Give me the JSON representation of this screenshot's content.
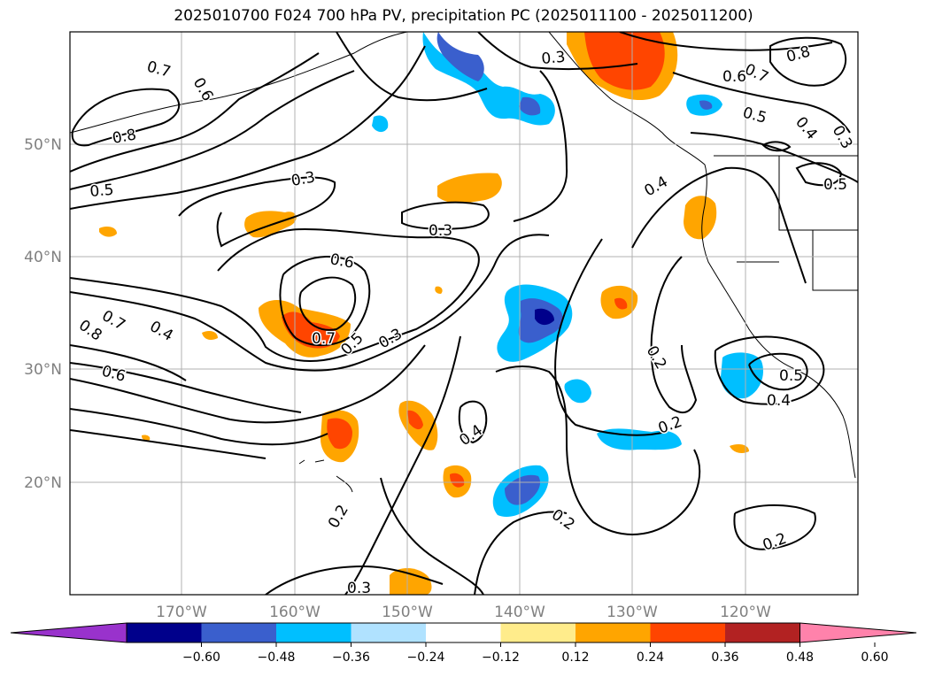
{
  "title": "2025010700 F024 700 hPa PV, precipitation PC (2025011100 - 2025011200)",
  "lat_labels": [
    "50°N",
    "40°N",
    "30°N",
    "20°N"
  ],
  "lon_labels": [
    "170°W",
    "160°W",
    "150°W",
    "140°W",
    "130°W",
    "120°W"
  ],
  "colorbar": {
    "ticks": [
      "−0.60",
      "−0.48",
      "−0.36",
      "−0.24",
      "−0.12",
      "0.12",
      "0.24",
      "0.36",
      "0.48",
      "0.60"
    ],
    "colors": [
      "#9932cc",
      "#00008b",
      "#3a5fcd",
      "#00bfff",
      "#b0e2ff",
      "#ffffff",
      "#ffec8b",
      "#ffa500",
      "#ff4500",
      "#b22222",
      "#ff82ab"
    ]
  },
  "contour_labels": [
    {
      "text": "0.7",
      "name": "contour-label"
    },
    {
      "text": "0.6",
      "name": "contour-label"
    },
    {
      "text": "0.8",
      "name": "contour-label"
    },
    {
      "text": "0.5",
      "name": "contour-label"
    },
    {
      "text": "0.3",
      "name": "contour-label"
    },
    {
      "text": "0.3",
      "name": "contour-label"
    },
    {
      "text": "0.6",
      "name": "contour-label"
    },
    {
      "text": "0.7",
      "name": "contour-label"
    },
    {
      "text": "0.8",
      "name": "contour-label"
    },
    {
      "text": "0.4",
      "name": "contour-label"
    },
    {
      "text": "0.6",
      "name": "contour-label"
    },
    {
      "text": "0.7",
      "name": "contour-label"
    },
    {
      "text": "0.5",
      "name": "contour-label"
    },
    {
      "text": "0.3",
      "name": "contour-label"
    },
    {
      "text": "0.4",
      "name": "contour-label"
    },
    {
      "text": "0.2",
      "name": "contour-label"
    },
    {
      "text": "0.2",
      "name": "contour-label"
    },
    {
      "text": "0.2",
      "name": "contour-label"
    },
    {
      "text": "0.2",
      "name": "contour-label"
    },
    {
      "text": "0.3",
      "name": "contour-label"
    },
    {
      "text": "0.4",
      "name": "contour-label"
    },
    {
      "text": "0.5",
      "name": "contour-label"
    },
    {
      "text": "0.4",
      "name": "contour-label"
    },
    {
      "text": "0.7",
      "name": "contour-label"
    },
    {
      "text": "0.8",
      "name": "contour-label"
    },
    {
      "text": "0.6",
      "name": "contour-label"
    },
    {
      "text": "0.5",
      "name": "contour-label"
    },
    {
      "text": "0.4",
      "name": "contour-label"
    },
    {
      "text": "0.3",
      "name": "contour-label"
    },
    {
      "text": "0.5",
      "name": "contour-label"
    },
    {
      "text": "0.2",
      "name": "contour-label"
    },
    {
      "text": "0.3",
      "name": "contour-label"
    }
  ]
}
